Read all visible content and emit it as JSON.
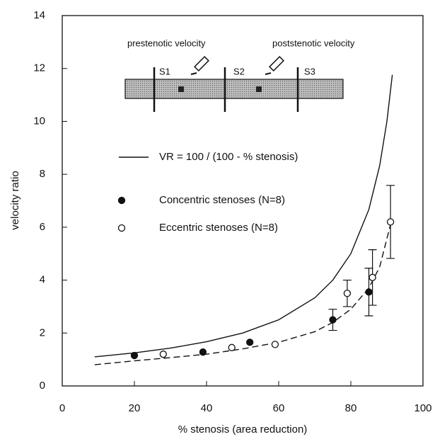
{
  "chart_data": {
    "type": "scatter",
    "xlabel": "% stenosis (area reduction)",
    "ylabel": "velocity ratio",
    "xlim": [
      0,
      100
    ],
    "xticks": [
      0,
      20,
      40,
      60,
      80,
      100
    ],
    "ylim": [
      0,
      14
    ],
    "yticks": [
      0,
      2,
      4,
      6,
      8,
      10,
      12,
      14
    ],
    "grid": false,
    "series": [
      {
        "name": "VR = 100 / (100 - % stenosis)",
        "style": "solid",
        "color": "#111111",
        "x": [
          9,
          20,
          30,
          40,
          50,
          60,
          70,
          75,
          80,
          85,
          88,
          90,
          91.5
        ],
        "values": [
          1.1,
          1.25,
          1.43,
          1.67,
          2.0,
          2.5,
          3.33,
          4.0,
          5.0,
          6.67,
          8.33,
          10.0,
          11.76
        ]
      },
      {
        "style": "dashed",
        "color": "#111111",
        "x": [
          9,
          20,
          30,
          40,
          50,
          60,
          70,
          75,
          80,
          85,
          88,
          91
        ],
        "values": [
          0.8,
          0.95,
          1.07,
          1.2,
          1.4,
          1.65,
          2.05,
          2.4,
          2.9,
          3.7,
          4.5,
          6.1
        ]
      },
      {
        "name": "Concentric stenoses (N=8)",
        "style": "filled",
        "color": "#111111",
        "x": [
          20,
          39,
          52,
          75,
          85
        ],
        "values": [
          1.15,
          1.28,
          1.65,
          2.5,
          3.55
        ],
        "errors": [
          null,
          null,
          null,
          0.4,
          0.9
        ]
      },
      {
        "name": "Eccentric stenoses (N=8)",
        "style": "open",
        "color": "#111111",
        "x": [
          28,
          47,
          59,
          79,
          86,
          91
        ],
        "values": [
          1.2,
          1.45,
          1.57,
          3.5,
          4.1,
          6.2
        ],
        "errors": [
          null,
          null,
          null,
          0.5,
          1.05,
          1.38
        ]
      }
    ]
  },
  "diagram": {
    "prestenotic": "prestenotic velocity",
    "poststenotic": "poststenotic velocity",
    "sections": [
      "S1",
      "S2",
      "S3"
    ]
  }
}
